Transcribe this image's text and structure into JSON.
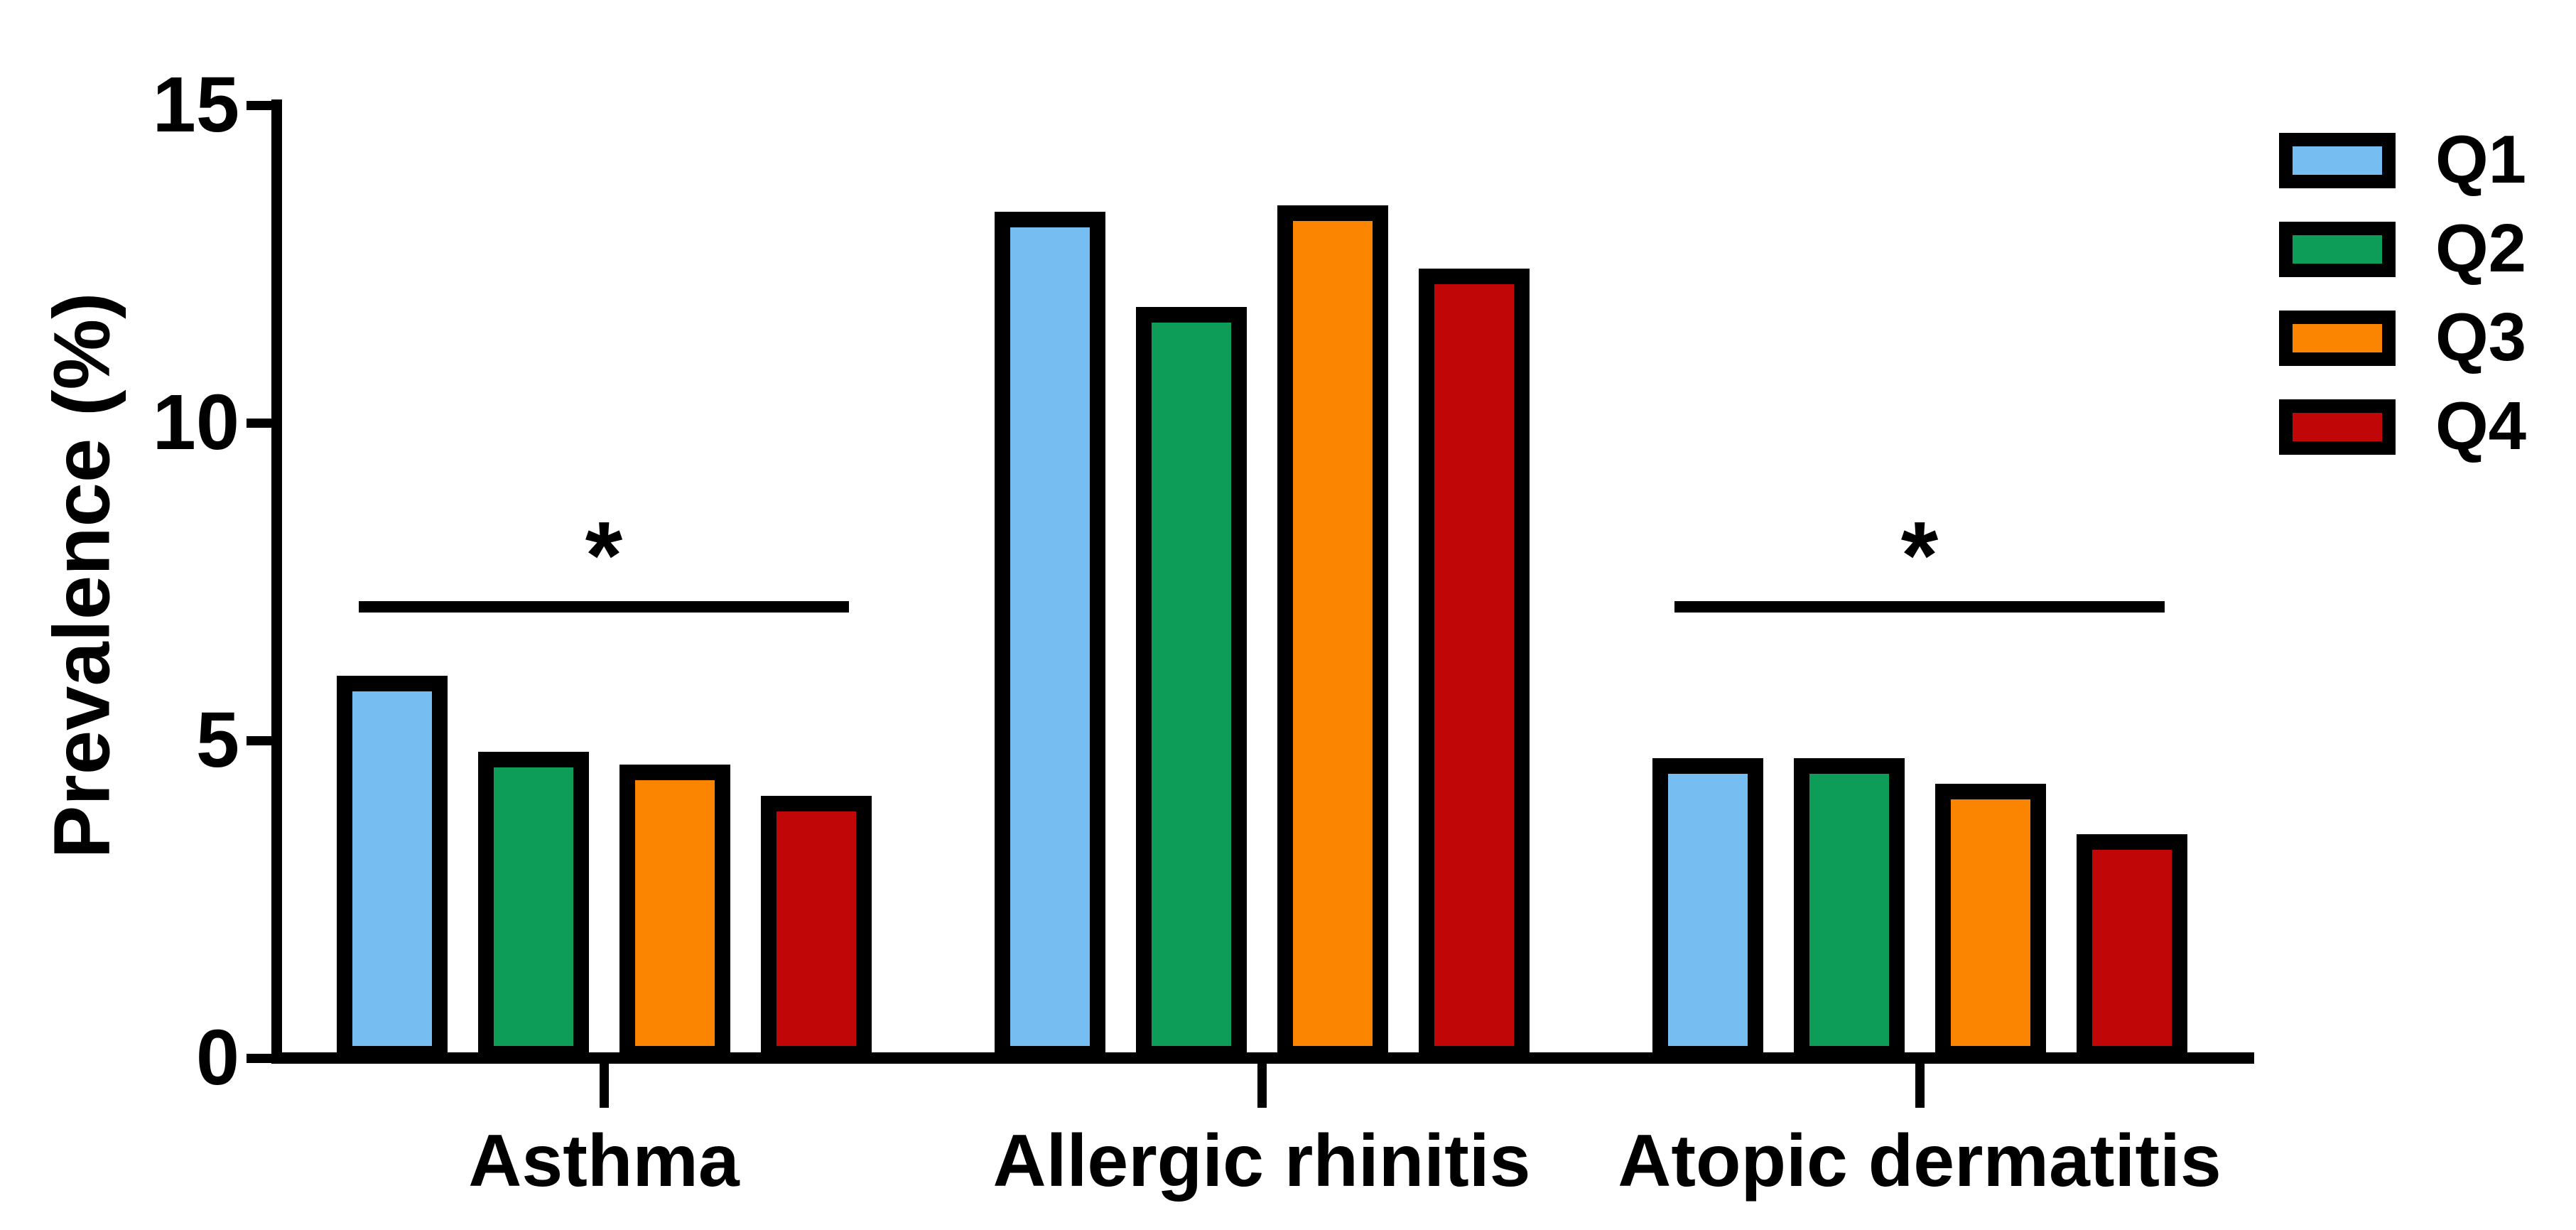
{
  "figure": {
    "background": "#ffffff",
    "text_color": "#000000",
    "axis_color": "#000000"
  },
  "chart_data": {
    "type": "bar",
    "title": "",
    "ylabel": "Prevalence (%)",
    "xlabel": "",
    "ylim": [
      0,
      15
    ],
    "yticks": [
      0,
      5,
      10,
      15
    ],
    "grid": false,
    "categories": [
      "Asthma",
      "Allergic rhinitis",
      "Atopic dermatitis"
    ],
    "series": [
      {
        "name": "Q1",
        "color": "#76BDF2",
        "values": [
          5.9,
          13.2,
          4.6
        ]
      },
      {
        "name": "Q2",
        "color": "#0D9D58",
        "values": [
          4.7,
          11.7,
          4.6
        ]
      },
      {
        "name": "Q3",
        "color": "#FB8500",
        "values": [
          4.5,
          13.3,
          4.2
        ]
      },
      {
        "name": "Q4",
        "color": "#C00606",
        "values": [
          4.0,
          12.3,
          3.4
        ]
      }
    ],
    "bar_border_color": "#000000",
    "legend": {
      "position": "top-right",
      "entries": [
        "Q1",
        "Q2",
        "Q3",
        "Q4"
      ]
    },
    "annotations": [
      {
        "type": "significance",
        "label": "*",
        "category_index": 0,
        "from_series": "Q1",
        "to_series": "Q4",
        "y": 7.1
      },
      {
        "type": "significance",
        "label": "*",
        "category_index": 2,
        "from_series": "Q1",
        "to_series": "Q4",
        "y": 7.1
      }
    ]
  }
}
